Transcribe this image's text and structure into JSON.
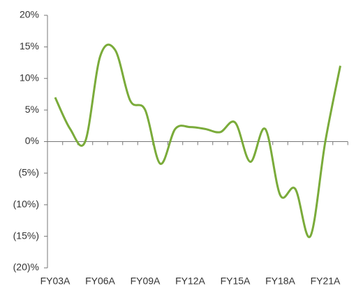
{
  "chart_data": {
    "type": "line",
    "categories": [
      "FY03A",
      null,
      null,
      "FY06A",
      null,
      null,
      "FY09A",
      null,
      null,
      "FY12A",
      null,
      null,
      "FY15A",
      null,
      null,
      "FY18A",
      null,
      null,
      "FY21A",
      null
    ],
    "series": [
      {
        "color": "#7aab3a",
        "values": [
          7,
          2,
          0,
          13.5,
          14.5,
          6.5,
          5,
          -3.5,
          2,
          2.3,
          2,
          1.5,
          3,
          -3.2,
          2,
          -8.5,
          -7.5,
          -15,
          0,
          12
        ]
      }
    ],
    "ylim": [
      -20,
      20
    ],
    "yticks": [
      {
        "value": -20,
        "label": "(20)%"
      },
      {
        "value": -15,
        "label": "(15%)"
      },
      {
        "value": -10,
        "label": "(10%)"
      },
      {
        "value": -5,
        "label": "(5%)"
      },
      {
        "value": 0,
        "label": "0%"
      },
      {
        "value": 5,
        "label": "5%"
      },
      {
        "value": 10,
        "label": "10%"
      },
      {
        "value": 15,
        "label": "15%"
      },
      {
        "value": 20,
        "label": "20%"
      }
    ],
    "smooth": true
  }
}
